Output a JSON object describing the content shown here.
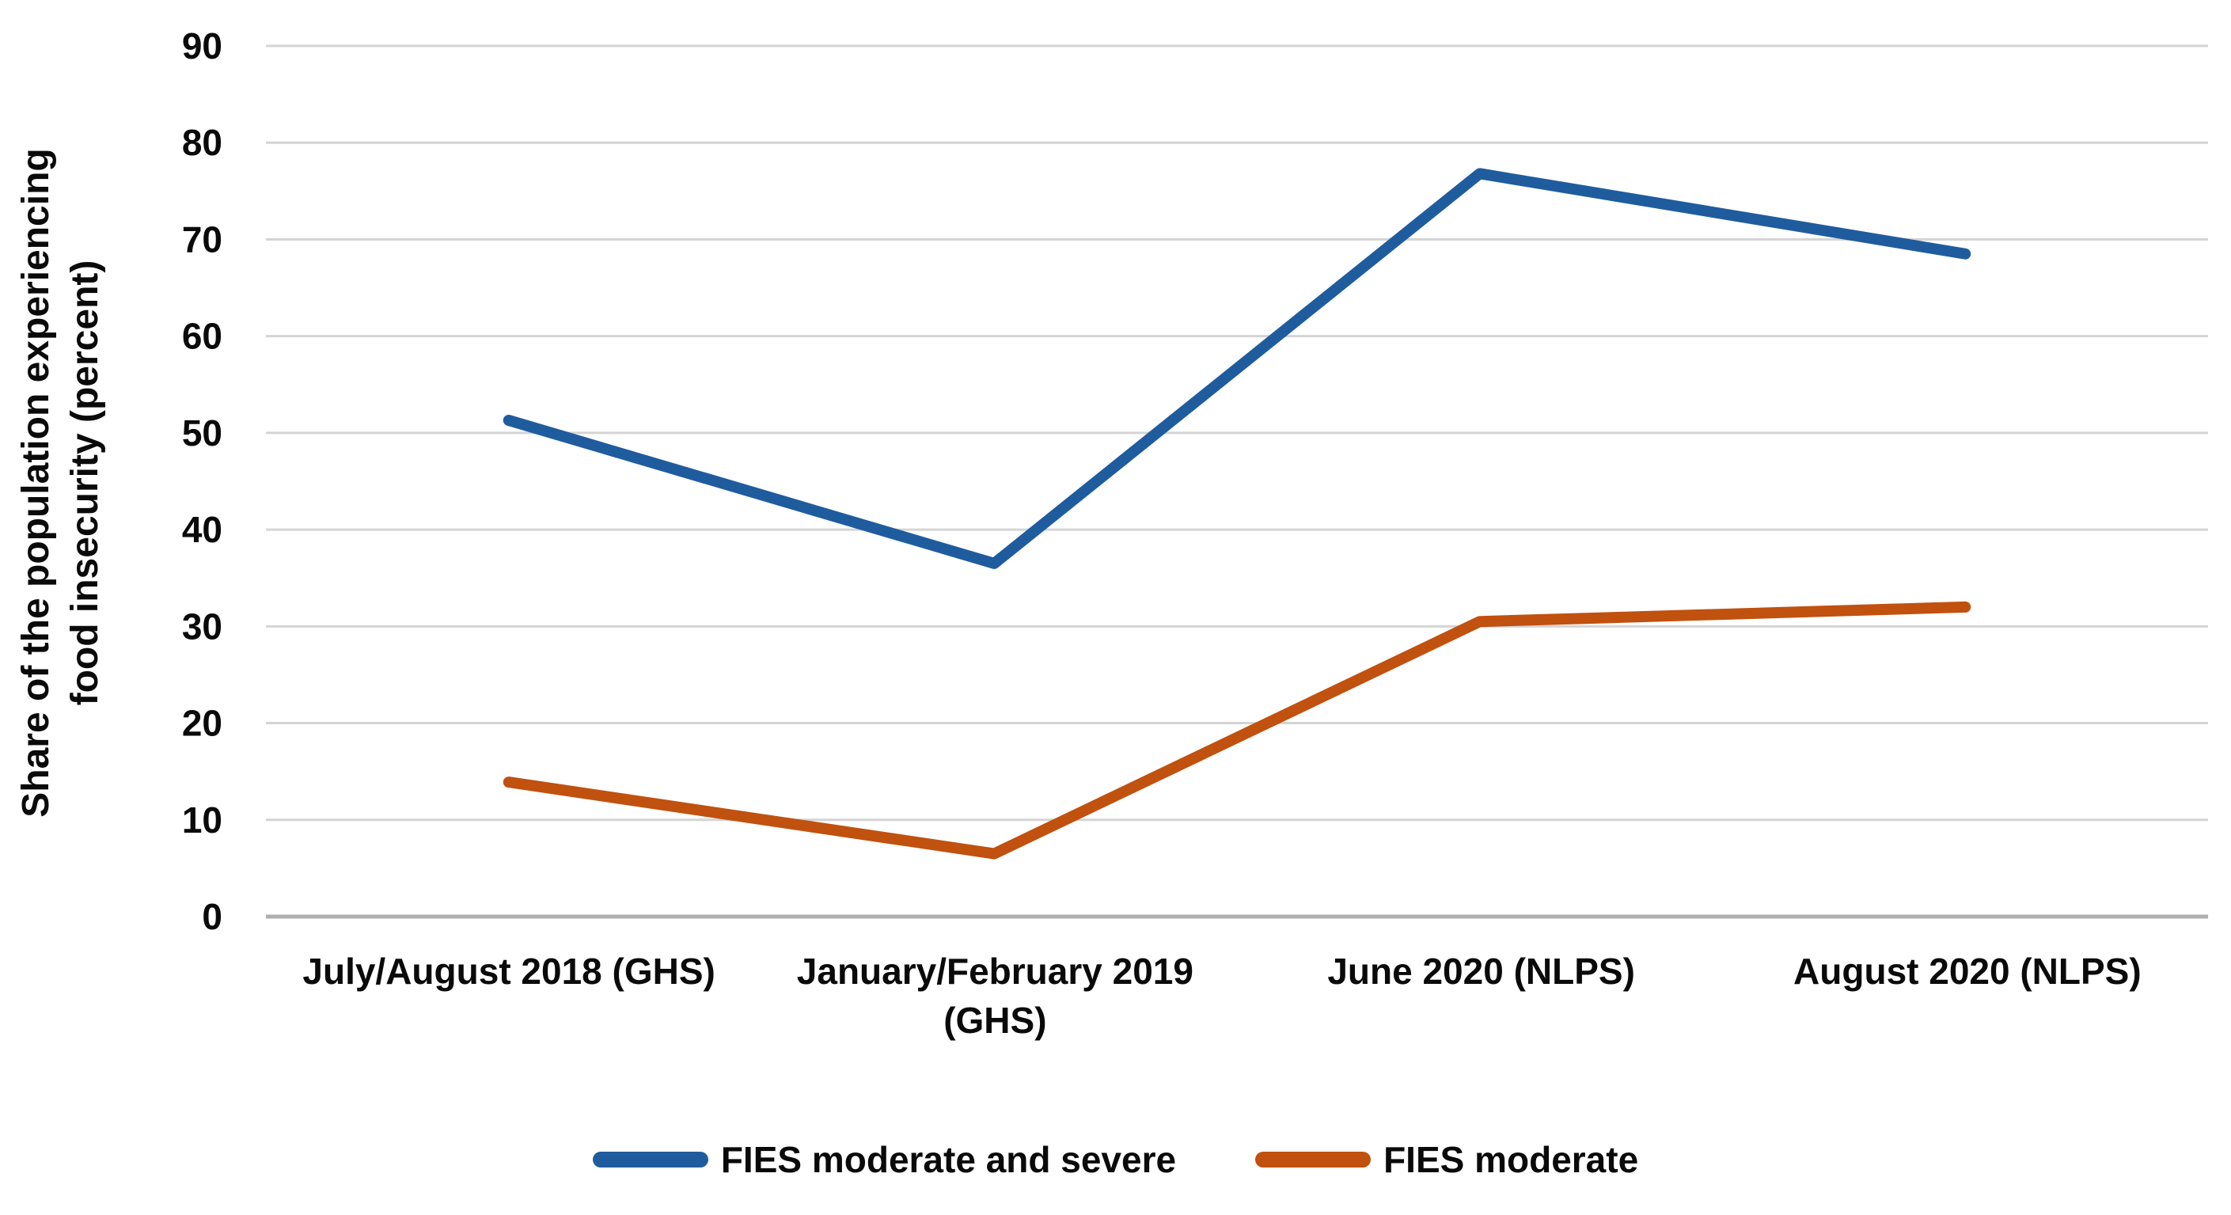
{
  "chart_data": {
    "type": "line",
    "title": "",
    "xlabel": "",
    "ylabel": "Share of the population experiencing food insecurity (percent)",
    "ylim": [
      0,
      90
    ],
    "yticks": [
      90,
      80,
      70,
      60,
      50,
      40,
      30,
      20,
      10,
      0
    ],
    "grid": "horizontal gridlines only, light gray",
    "legend_position": "bottom-center",
    "categories": [
      "July/August 2018 (GHS)",
      "January/February 2019 (GHS)",
      "June 2020 (NLPS)",
      "August 2020 (NLPS)"
    ],
    "series": [
      {
        "name": "FIES moderate and severe",
        "color": "#1F5C9E",
        "values": [
          51.3,
          36.5,
          76.8,
          68.5
        ]
      },
      {
        "name": "FIES moderate",
        "color": "#C0510F",
        "values": [
          13.9,
          6.5,
          30.5,
          32.0
        ]
      }
    ]
  },
  "colors": {
    "background": "#FFFFFF",
    "gridline": "#D4D4D4",
    "axis_line": "#AFAFAF",
    "text": "#0A0A0A"
  }
}
